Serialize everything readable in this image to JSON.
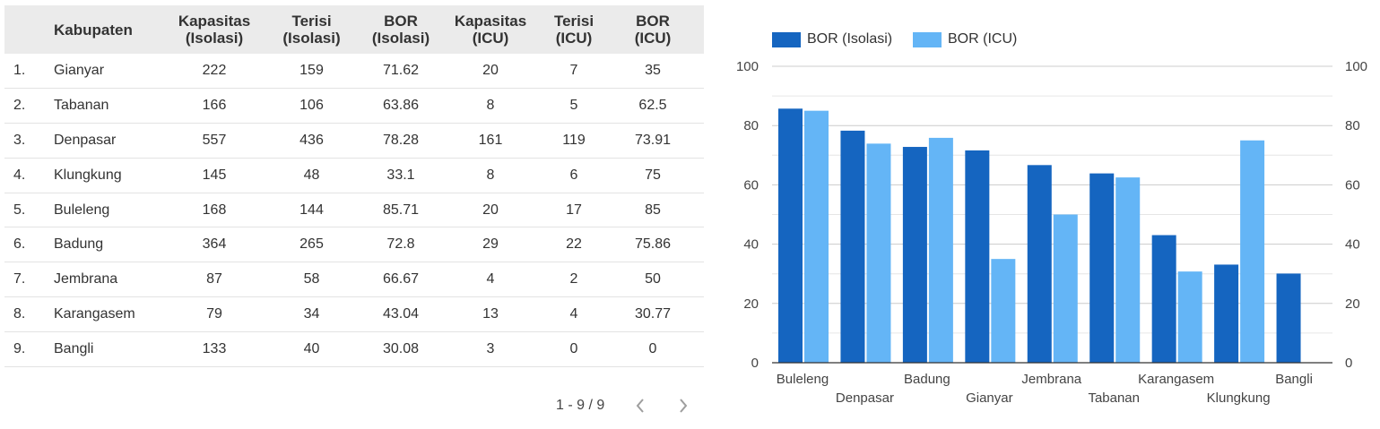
{
  "table": {
    "headers": [
      {
        "key": "idx",
        "label": ""
      },
      {
        "key": "name",
        "label": "Kabupaten"
      },
      {
        "key": "kap_iso",
        "label": "Kapasitas\n(Isolasi)"
      },
      {
        "key": "ter_iso",
        "label": "Terisi\n(Isolasi)"
      },
      {
        "key": "bor_iso",
        "label": "BOR\n(Isolasi)"
      },
      {
        "key": "kap_icu",
        "label": "Kapasitas\n(ICU)"
      },
      {
        "key": "ter_icu",
        "label": "Terisi\n(ICU)"
      },
      {
        "key": "bor_icu",
        "label": "BOR\n(ICU)"
      }
    ],
    "rows": [
      [
        "1.",
        "Gianyar",
        "222",
        "159",
        "71.62",
        "20",
        "7",
        "35"
      ],
      [
        "2.",
        "Tabanan",
        "166",
        "106",
        "63.86",
        "8",
        "5",
        "62.5"
      ],
      [
        "3.",
        "Denpasar",
        "557",
        "436",
        "78.28",
        "161",
        "119",
        "73.91"
      ],
      [
        "4.",
        "Klungkung",
        "145",
        "48",
        "33.1",
        "8",
        "6",
        "75"
      ],
      [
        "5.",
        "Buleleng",
        "168",
        "144",
        "85.71",
        "20",
        "17",
        "85"
      ],
      [
        "6.",
        "Badung",
        "364",
        "265",
        "72.8",
        "29",
        "22",
        "75.86"
      ],
      [
        "7.",
        "Jembrana",
        "87",
        "58",
        "66.67",
        "4",
        "2",
        "50"
      ],
      [
        "8.",
        "Karangasem",
        "79",
        "34",
        "43.04",
        "13",
        "4",
        "30.77"
      ],
      [
        "9.",
        "Bangli",
        "133",
        "40",
        "30.08",
        "3",
        "0",
        "0"
      ]
    ]
  },
  "pager": {
    "label": "1 - 9 / 9",
    "prev_icon": "chevron-left-icon",
    "next_icon": "chevron-right-icon"
  },
  "chart_data": {
    "type": "bar",
    "categories": [
      "Buleleng",
      "Denpasar",
      "Badung",
      "Gianyar",
      "Jembrana",
      "Tabanan",
      "Karangasem",
      "Klungkung",
      "Bangli"
    ],
    "series": [
      {
        "name": "BOR (Isolasi)",
        "color": "#1565c0",
        "values": [
          85.71,
          78.28,
          72.8,
          71.62,
          66.67,
          63.86,
          43.04,
          33.1,
          30.08
        ]
      },
      {
        "name": "BOR (ICU)",
        "color": "#64b5f6",
        "values": [
          85,
          73.91,
          75.86,
          35,
          50,
          62.5,
          30.77,
          75,
          0
        ]
      }
    ],
    "ylim": [
      0,
      100
    ],
    "yticks": [
      0,
      20,
      40,
      60,
      80,
      100
    ],
    "grid": true,
    "legend": "top-left",
    "title": "",
    "xlabel": "",
    "ylabel": ""
  }
}
